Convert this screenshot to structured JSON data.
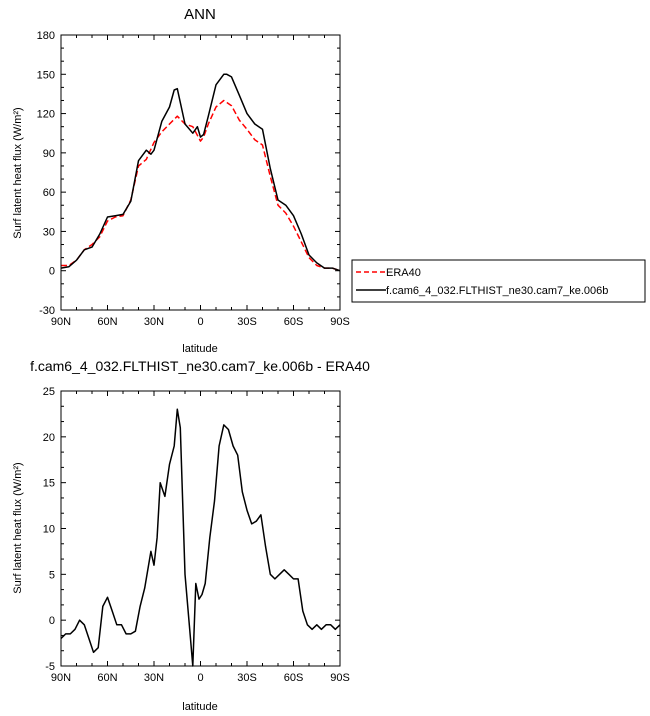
{
  "chart_data": [
    {
      "type": "line",
      "title": "ANN",
      "xlabel": "latitude",
      "ylabel": "Surf latent heat flux (W/m²)",
      "ylim": [
        -30,
        180
      ],
      "yticks": [
        -30,
        0,
        30,
        60,
        90,
        120,
        150,
        180
      ],
      "xlim": [
        90,
        -90
      ],
      "xticks": [
        90,
        60,
        30,
        0,
        -30,
        -60,
        -90
      ],
      "xtick_labels": [
        "90N",
        "60N",
        "30N",
        "0",
        "30S",
        "60S",
        "90S"
      ],
      "legend": "right, outside plot",
      "series": [
        {
          "name": "ERA40",
          "color": "#ff0000",
          "dash": "dashed",
          "x": [
            90,
            85,
            80,
            75,
            70,
            65,
            60,
            55,
            50,
            45,
            40,
            35,
            30,
            25,
            20,
            15,
            10,
            5,
            0,
            -2,
            -5,
            -10,
            -15,
            -20,
            -25,
            -30,
            -35,
            -40,
            -45,
            -50,
            -55,
            -60,
            -65,
            -70,
            -75,
            -80,
            -85,
            -90
          ],
          "values": [
            4,
            4,
            8,
            16,
            20,
            26,
            38,
            41,
            42,
            54,
            80,
            85,
            98,
            106,
            112,
            118,
            112,
            110,
            99,
            102,
            112,
            125,
            130,
            126,
            115,
            108,
            100,
            96,
            72,
            50,
            44,
            34,
            22,
            10,
            4,
            2,
            2,
            0
          ]
        },
        {
          "name": "f.cam6_4_032.FLTHIST_ne30.cam7_ke.006b",
          "color": "#000000",
          "dash": "solid",
          "x": [
            90,
            85,
            80,
            75,
            70,
            65,
            60,
            55,
            50,
            45,
            40,
            35,
            32,
            30,
            25,
            20,
            17,
            15,
            10,
            5,
            2,
            0,
            -2,
            -5,
            -10,
            -15,
            -17,
            -20,
            -25,
            -30,
            -35,
            -40,
            -45,
            -50,
            -55,
            -60,
            -65,
            -70,
            -75,
            -80,
            -85,
            -90
          ],
          "values": [
            2,
            3,
            8,
            16,
            18,
            28,
            41,
            42,
            43,
            53,
            84,
            92,
            89,
            92,
            114,
            125,
            138,
            139,
            112,
            105,
            110,
            102,
            104,
            118,
            142,
            150,
            150,
            148,
            134,
            120,
            112,
            108,
            78,
            54,
            50,
            42,
            28,
            12,
            6,
            2,
            2,
            0
          ]
        }
      ]
    },
    {
      "type": "line",
      "title": "f.cam6_4_032.FLTHIST_ne30.cam7_ke.006b - ERA40",
      "xlabel": "latitude",
      "ylabel": "Surf latent heat flux (W/m²)",
      "ylim": [
        -5,
        25
      ],
      "yticks": [
        -5,
        0,
        5,
        10,
        15,
        20,
        25
      ],
      "xlim": [
        90,
        -90
      ],
      "xticks": [
        90,
        60,
        30,
        0,
        -30,
        -60,
        -90
      ],
      "xtick_labels": [
        "90N",
        "60N",
        "30N",
        "0",
        "30S",
        "60S",
        "90S"
      ],
      "series": [
        {
          "name": "",
          "color": "#000000",
          "dash": "solid",
          "x": [
            90,
            87,
            84,
            81,
            78,
            75,
            72,
            69,
            66,
            63,
            60,
            57,
            54,
            51,
            48,
            45,
            42,
            39,
            36,
            34,
            32,
            30,
            28,
            26,
            23,
            20,
            17,
            15,
            13,
            10,
            7,
            5,
            3,
            1,
            -1,
            -3,
            -6,
            -9,
            -12,
            -15,
            -18,
            -21,
            -24,
            -27,
            -30,
            -33,
            -36,
            -39,
            -42,
            -45,
            -48,
            -51,
            -54,
            -57,
            -60,
            -63,
            -66,
            -69,
            -72,
            -75,
            -78,
            -81,
            -84,
            -87,
            -90
          ],
          "values": [
            -2,
            -1.5,
            -1.5,
            -1,
            0,
            -0.5,
            -2,
            -3.5,
            -3,
            1.5,
            2.5,
            1,
            -0.5,
            -0.5,
            -1.5,
            -1.5,
            -1.2,
            1.5,
            3.5,
            5.5,
            7.5,
            6,
            9,
            15,
            13.5,
            17,
            19,
            23,
            21,
            5,
            -1,
            -5,
            4,
            2.3,
            2.8,
            4,
            9,
            13,
            19,
            21.3,
            20.8,
            19,
            18,
            14,
            12,
            10.5,
            10.8,
            11.5,
            8,
            5,
            4.5,
            5,
            5.5,
            5,
            4.5,
            4.5,
            1,
            -0.5,
            -1,
            -0.5,
            -1,
            -0.5,
            -0.5,
            -1,
            -0.5
          ]
        }
      ]
    }
  ]
}
